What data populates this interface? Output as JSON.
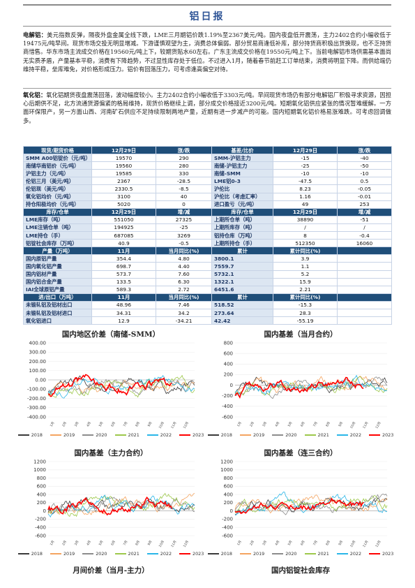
{
  "title": "铝日报",
  "para1": {
    "lead": "电解铝：",
    "text": "美元指数反弹，隔夜外盘金属全线下跌，LME三月期铝价跌1.19%至2367美元/吨。国内夜盘低开震荡，主力2402合约小幅收低于19475元/吨早间。现货市场交投无明显增减。下游谨慎观望为主，消费总体偏弱。部分贸易商逢低补库，部分持货商积极出货换现，也不乏持货商惜售。华东市场主流成交价格在19560元/吨上下，较期货贴水60左右。广东主流成交价格在19550元/吨上下。当前电解铝市场供需基本面尚无实质矛盾，产量基本平稳，消费有下降趋势，不过显性库存处于低位。不过进入1月，随着春节前赶工订单结束，消费将明显下降。而供给端仍维持平稳，垒库难免，对价格形成压力。铝价有回落压力，可考虑逢高偏空对待。"
  },
  "para2": {
    "lead": "氧化铝：",
    "text": "氧化铝期货夜盘震荡回落，波动幅度较小。主力2402合约小幅收低于3303元/吨。早间现货市场仍有部分电解铝厂积极寻求资源，因担心后期供不足，北方流通货源偏紧的格局维持，现货价格继续上调，部分成交价格接近3200元/吨。短期氧化铝供应紧张的情况暂难缓解。一方面环保限产，另一方面山西、河南矿石供应不足持续限制两地产量，近期有进一步减产的可能。国内短期氧化铝价格易涨难跌。可考虑回调做多。"
  },
  "table": [
    {
      "type": "hd",
      "cells": [
        "现货/期货价格",
        "12月29日",
        "涨/跌",
        "基差/比价",
        "12月29日",
        "涨/跌"
      ]
    },
    {
      "type": "row",
      "cells": [
        "SMM A00铝锭价（元/吨）",
        "19570",
        "290",
        "SMM-沪铝主力",
        "-15",
        "-40"
      ]
    },
    {
      "type": "row",
      "cells": [
        "南储华南铝价（元/吨）",
        "19560",
        "280",
        "南储-沪铝主力",
        "-25",
        "-50"
      ]
    },
    {
      "type": "row",
      "cells": [
        "沪铝主力（元/吨）",
        "19585",
        "330",
        "南储-SMM",
        "-10",
        "-10"
      ]
    },
    {
      "type": "row",
      "cells": [
        "伦铝三月（美元/吨）",
        "2367",
        "-28.5",
        "LME铝0-3",
        "-47.5",
        "0.5"
      ]
    },
    {
      "type": "row",
      "cells": [
        "伦铝现（美元/吨）",
        "2330.5",
        "-8.5",
        "沪伦比",
        "8.23",
        "-0.05"
      ]
    },
    {
      "type": "row",
      "cells": [
        "氧化铝均价（元/吨）",
        "3100",
        "40",
        "沪伦比（考虑汇率）",
        "1.16",
        "-0.01"
      ]
    },
    {
      "type": "row",
      "cells": [
        "持仓阳极均价（元/吨）",
        "5020",
        "0",
        "进口盈亏（元/吨）",
        "49",
        "253"
      ]
    },
    {
      "type": "hd",
      "cells": [
        "库存/仓单",
        "12月29日",
        "增/减",
        "库存/仓单",
        "12月29日",
        "增/减"
      ]
    },
    {
      "type": "row",
      "cells": [
        "LME库存（吨）",
        "551050",
        "27325",
        "上期所仓单（吨）",
        "38890",
        "-51"
      ]
    },
    {
      "type": "row",
      "cells": [
        "LME注销仓单（吨）",
        "194925",
        "-25",
        "上期所库存（吨）",
        "/",
        "/"
      ]
    },
    {
      "type": "row",
      "cells": [
        "LME持仓（手）",
        "687085",
        "3269",
        "铝持仓库（万吨）",
        "8",
        "-0.4"
      ]
    },
    {
      "type": "row",
      "cells": [
        "铝锭社会库存（万吨）",
        "40.9",
        "-0.5",
        "上期所持仓（手）",
        "512350",
        "16060"
      ]
    },
    {
      "type": "hd",
      "cells": [
        "产量（万吨）",
        "11月",
        "当月同比(%)",
        "累计",
        "累计同比(%)",
        ""
      ]
    },
    {
      "type": "row",
      "cells": [
        "国内原铝产量",
        "354.4",
        "4.80",
        "3800.1",
        "3.9",
        ""
      ]
    },
    {
      "type": "row",
      "cells": [
        "国内氧化铝产量",
        "698.7",
        "4.40",
        "7559.7",
        "1.1",
        ""
      ]
    },
    {
      "type": "row",
      "cells": [
        "国内铝材产量",
        "573.7",
        "7.60",
        "5732.1",
        "5.2",
        ""
      ]
    },
    {
      "type": "row",
      "cells": [
        "国内铝合金产量",
        "133.5",
        "6.30",
        "1322.1",
        "15.9",
        ""
      ]
    },
    {
      "type": "row",
      "cells": [
        "IAI全球原铝产量",
        "589.3",
        "2.72",
        "6451.6",
        "2.21",
        ""
      ]
    },
    {
      "type": "hd",
      "cells": [
        "进/出口（万吨）",
        "11月",
        "当月同比(%)",
        "累计",
        "累计同比(%)",
        ""
      ]
    },
    {
      "type": "row",
      "cells": [
        "未锻轧铝及铝材出口",
        "48.96",
        "7.46",
        "518.52",
        "-15.3",
        ""
      ]
    },
    {
      "type": "row",
      "cells": [
        "未锻轧铝及铝材进口",
        "34.31",
        "34.2",
        "273.64",
        "28.3",
        ""
      ]
    },
    {
      "type": "row",
      "cells": [
        "氧化铝进口",
        "12.9",
        "-34.21",
        "42.42",
        "-55.19",
        ""
      ]
    }
  ],
  "months": [
    "1月",
    "2月",
    "3月",
    "4月",
    "5月",
    "6月",
    "7月",
    "8月",
    "9月",
    "10月",
    "11月",
    "12月"
  ],
  "legend_years": [
    "2018",
    "2019",
    "2020",
    "2021",
    "2022",
    "2023"
  ],
  "colors": {
    "2018": "#3a3a3a",
    "2019": "#f4a460",
    "2020": "#8c8c8c",
    "2021": "#9dc84b",
    "2022": "#29b6e8",
    "2023": "#ff0000"
  },
  "charts": [
    {
      "title": "国内地区价差（南储-SMM）",
      "yticks": [
        "400.00",
        "300.00",
        "200.00",
        "100.00",
        "0.00",
        "-100.00",
        "-200.00",
        "-300.00",
        "-400.00"
      ],
      "ymin": -400,
      "ymax": 400
    },
    {
      "title": "国内基差（当月合约）",
      "yticks": [
        "800",
        "600",
        "400",
        "200",
        "0",
        "-200",
        "-400",
        "-600"
      ],
      "ymin": -600,
      "ymax": 800
    },
    {
      "title": "国内基差（主力合约）",
      "yticks": [
        "1200",
        "1000",
        "800",
        "600",
        "400",
        "200",
        "0",
        "-200",
        "-400",
        "-600"
      ],
      "ymin": -600,
      "ymax": 1200
    },
    {
      "title": "国内基差（连三合约）",
      "yticks": [
        "1200",
        "1000",
        "800",
        "600",
        "400",
        "200",
        "0",
        "-200",
        "-400",
        "-600"
      ],
      "ymin": -600,
      "ymax": 1200
    },
    {
      "title": "月间价差（当月-主力）",
      "yticks": [],
      "ymin": 0,
      "ymax": 1
    },
    {
      "title": "国内铝锭社会库存",
      "yticks": [],
      "ymin": 0,
      "ymax": 1
    }
  ]
}
